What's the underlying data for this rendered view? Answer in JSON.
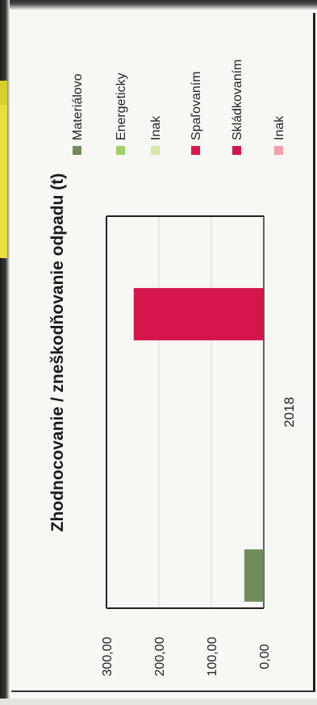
{
  "chart_data": {
    "type": "bar",
    "title": "Zhodnocovanie  / zneškodňovanie odpadu (t)",
    "categories": [
      "2018"
    ],
    "series": [
      {
        "name": "Materiálovo",
        "color": "#6f8c5a",
        "values": [
          37
        ]
      },
      {
        "name": "Energeticky",
        "color": "#9fcf6a",
        "values": [
          0
        ]
      },
      {
        "name": "Inak",
        "color": "#d8e6a8",
        "values": [
          0
        ]
      },
      {
        "name": "Spaľovaním",
        "color": "#dc1a4e",
        "values": [
          0
        ]
      },
      {
        "name": "Skládkovaním",
        "color": "#d4164c",
        "values": [
          248
        ]
      },
      {
        "name": "Inak",
        "color": "#f0a0a8",
        "values": [
          0
        ]
      }
    ],
    "yticks": [
      "300,00",
      "200,00",
      "100,00",
      "0,00"
    ],
    "ylim": [
      0,
      300
    ],
    "grid": true,
    "legend_position": "right"
  }
}
